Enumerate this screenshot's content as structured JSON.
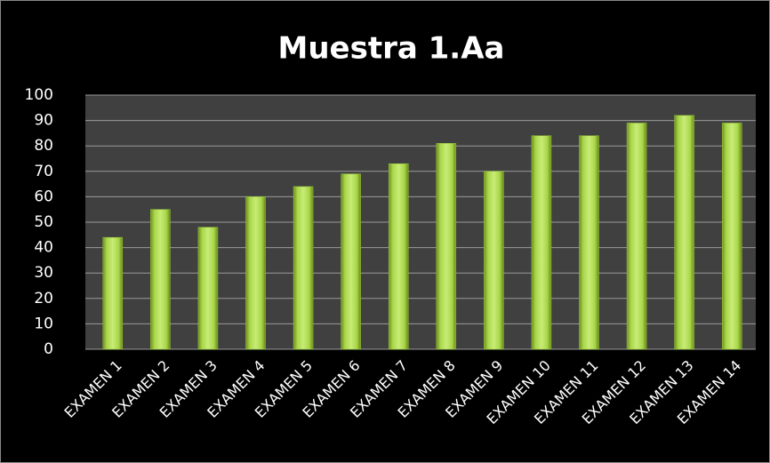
{
  "chart_data": {
    "type": "bar",
    "title": "Muestra 1.Aa",
    "categories": [
      "EXAMEN 1",
      "EXAMEN 2",
      "EXAMEN 3",
      "EXAMEN 4",
      "EXAMEN 5",
      "EXAMEN 6",
      "EXAMEN 7",
      "EXAMEN 8",
      "EXAMEN 9",
      "EXAMEN 10",
      "EXAMEN 11",
      "EXAMEN 12",
      "EXAMEN 13",
      "EXAMEN 14"
    ],
    "values": [
      44,
      55,
      48,
      60,
      64,
      69,
      73,
      81,
      70,
      84,
      84,
      89,
      92,
      89
    ],
    "color": "#9acd32",
    "ylim": [
      0,
      100
    ],
    "yticks": [
      0,
      10,
      20,
      30,
      40,
      50,
      60,
      70,
      80,
      90,
      100
    ],
    "grid": true
  }
}
